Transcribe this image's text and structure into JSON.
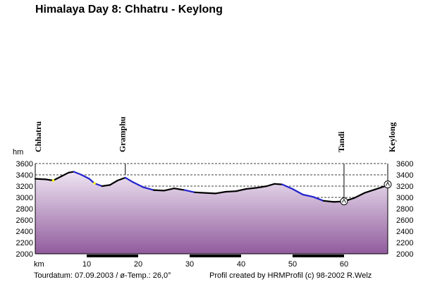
{
  "chart_data": {
    "type": "area",
    "title": "Himalaya Day 8: Chhatru - Keylong",
    "ylabel": "hm",
    "xlabel": "km",
    "xlim": [
      0,
      68.5
    ],
    "ylim": [
      2000,
      3600
    ],
    "y_ticks": [
      2000,
      2200,
      2400,
      2600,
      2800,
      3000,
      3200,
      3400,
      3600
    ],
    "x_ticks": [
      10,
      20,
      30,
      40,
      50,
      60
    ],
    "grid": "horizontal dashed",
    "profile": [
      [
        0,
        3330
      ],
      [
        2,
        3320
      ],
      [
        3.5,
        3300
      ],
      [
        5,
        3370
      ],
      [
        6.5,
        3440
      ],
      [
        7.5,
        3455
      ],
      [
        9,
        3400
      ],
      [
        10.5,
        3330
      ],
      [
        11.5,
        3250
      ],
      [
        13,
        3200
      ],
      [
        14.5,
        3220
      ],
      [
        16,
        3300
      ],
      [
        17.5,
        3350
      ],
      [
        19,
        3270
      ],
      [
        21,
        3180
      ],
      [
        23,
        3130
      ],
      [
        25,
        3120
      ],
      [
        27,
        3160
      ],
      [
        29,
        3130
      ],
      [
        31,
        3090
      ],
      [
        33,
        3080
      ],
      [
        35,
        3070
      ],
      [
        37,
        3100
      ],
      [
        39,
        3110
      ],
      [
        41,
        3150
      ],
      [
        43,
        3170
      ],
      [
        45,
        3200
      ],
      [
        46.5,
        3240
      ],
      [
        48,
        3230
      ],
      [
        50,
        3150
      ],
      [
        52,
        3050
      ],
      [
        54,
        3010
      ],
      [
        56,
        2940
      ],
      [
        58,
        2920
      ],
      [
        60,
        2930
      ],
      [
        62,
        2990
      ],
      [
        64,
        3080
      ],
      [
        66,
        3140
      ],
      [
        68,
        3200
      ],
      [
        68.5,
        3230
      ]
    ],
    "places": [
      {
        "name": "Chhatru",
        "km": 0,
        "alt": 3330
      },
      {
        "name": "Gramphu",
        "km": 17.5,
        "alt": 3350
      },
      {
        "name": "Tandi",
        "km": 60,
        "alt": 2930
      },
      {
        "name": "Keylong",
        "km": 68.5,
        "alt": 3230
      }
    ],
    "colors": {
      "profile_line": "#000000",
      "descent_segments": "#2222cc",
      "highlight_points": "#ffff00",
      "fill_top": "#eee4f2",
      "fill_bottom": "#915c9d"
    }
  },
  "footer": {
    "date": "Tourdatum: 07.09.2003  /  ø-Temp.: 26,0°",
    "credit": "Profil created by HRMProfil (c) 98-2002 R.Welz"
  }
}
